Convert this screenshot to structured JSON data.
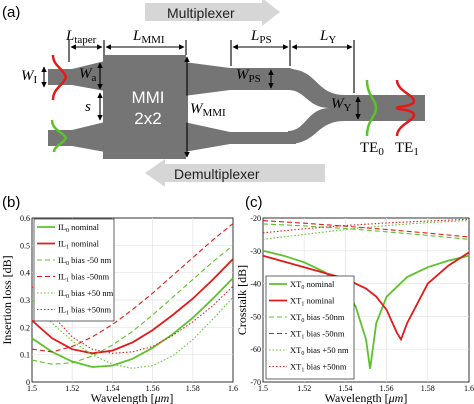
{
  "panel_a": {
    "label": "(a)",
    "multiplexer": "Multiplexer",
    "demultiplexer": "Demultiplexer",
    "mmi_line1": "MMI",
    "mmi_line2": "2x2",
    "L_taper": {
      "main": "L",
      "sub": "taper"
    },
    "L_MMI": {
      "main": "L",
      "sub": "MMI"
    },
    "L_PS": {
      "main": "L",
      "sub": "PS"
    },
    "L_Y": {
      "main": "L",
      "sub": "Y"
    },
    "W_I": {
      "main": "W",
      "sub": "I"
    },
    "W_a": {
      "main": "W",
      "sub": "a"
    },
    "s": "s",
    "W_MMI": {
      "main": "W",
      "sub": "MMI"
    },
    "W_PS": {
      "main": "W",
      "sub": "PS"
    },
    "W_Y": {
      "main": "W",
      "sub": "Y"
    },
    "TE0": {
      "main": "TE",
      "sub": "0"
    },
    "TE1": {
      "main": "TE",
      "sub": "1"
    },
    "colors": {
      "waveguide": "#757575",
      "arrow": "#d6d6d6",
      "green": "#5cc22b",
      "red": "#e11a1a"
    }
  },
  "panel_b": {
    "label": "(b)",
    "xlabel": "Wavelength [",
    "xlabel_unit": "μm",
    "xlabel_end": "]",
    "ylabel": "Insertion loss [dB]",
    "legend": [
      {
        "main": "IL",
        "sub": "0",
        "text": " nominal"
      },
      {
        "main": "IL",
        "sub": "1",
        "text": " nominal"
      },
      {
        "main": "IL",
        "sub": "0",
        "text": " bias -50 nm"
      },
      {
        "main": "IL",
        "sub": "1",
        "text": " bias -50nm"
      },
      {
        "main": "IL",
        "sub": "0",
        "text": " bias +50 nm"
      },
      {
        "main": "IL",
        "sub": "1",
        "text": " bias +50nm"
      }
    ]
  },
  "panel_c": {
    "label": "(c)",
    "xlabel": "Wavelength [",
    "xlabel_unit": "μm",
    "xlabel_end": "]",
    "ylabel": "Crosstalk [dB]",
    "legend": [
      {
        "main": "XT",
        "sub": "0",
        "text": " nominal"
      },
      {
        "main": "XT",
        "sub": "1",
        "text": " nominal"
      },
      {
        "main": "XT",
        "sub": "0",
        "text": " bias -50nm"
      },
      {
        "main": "XT",
        "sub": "1",
        "text": " bias -50nm"
      },
      {
        "main": "XT",
        "sub": "0",
        "text": " bias +50 nm"
      },
      {
        "main": "XT",
        "sub": "1",
        "text": " bias +50nm"
      }
    ]
  },
  "chart_data": [
    {
      "type": "line",
      "panel": "(b)",
      "xlabel": "Wavelength [μm]",
      "ylabel": "Insertion loss [dB]",
      "xlim": [
        1.5,
        1.6
      ],
      "ylim": [
        0,
        0.6
      ],
      "xticks": [
        "1.5",
        "1.52",
        "1.54",
        "1.56",
        "1.58",
        "1.6"
      ],
      "yticks": [
        "0",
        "0.1",
        "0.2",
        "0.3",
        "0.4",
        "0.5",
        "0.6"
      ],
      "grid": true,
      "legend_position": "top-left",
      "series": [
        {
          "name": "IL0 nominal",
          "color": "#5cc22b",
          "style": "solid",
          "x": [
            1.5,
            1.51,
            1.52,
            1.53,
            1.54,
            1.55,
            1.56,
            1.57,
            1.58,
            1.59,
            1.6
          ],
          "y": [
            0.16,
            0.11,
            0.075,
            0.055,
            0.06,
            0.085,
            0.125,
            0.175,
            0.235,
            0.305,
            0.38
          ]
        },
        {
          "name": "IL1 nominal",
          "color": "#e11a1a",
          "style": "solid",
          "x": [
            1.5,
            1.51,
            1.52,
            1.53,
            1.54,
            1.55,
            1.56,
            1.57,
            1.58,
            1.59,
            1.6
          ],
          "y": [
            0.225,
            0.16,
            0.12,
            0.105,
            0.115,
            0.145,
            0.19,
            0.245,
            0.305,
            0.375,
            0.45
          ]
        },
        {
          "name": "IL0 bias -50 nm",
          "color": "#5cc22b",
          "style": "dashed",
          "x": [
            1.5,
            1.51,
            1.52,
            1.53,
            1.54,
            1.55,
            1.56,
            1.57,
            1.58,
            1.59,
            1.6
          ],
          "y": [
            0.08,
            0.065,
            0.07,
            0.095,
            0.135,
            0.185,
            0.245,
            0.31,
            0.375,
            0.44,
            0.5
          ]
        },
        {
          "name": "IL1 bias -50nm",
          "color": "#e11a1a",
          "style": "dashed",
          "x": [
            1.5,
            1.51,
            1.52,
            1.53,
            1.54,
            1.55,
            1.56,
            1.57,
            1.58,
            1.59,
            1.6
          ],
          "y": [
            0.12,
            0.11,
            0.13,
            0.165,
            0.21,
            0.265,
            0.325,
            0.39,
            0.455,
            0.52,
            0.58
          ]
        },
        {
          "name": "IL0 bias +50 nm",
          "color": "#5cc22b",
          "style": "dotted",
          "x": [
            1.5,
            1.51,
            1.52,
            1.53,
            1.54,
            1.55,
            1.56,
            1.57,
            1.58,
            1.59,
            1.6
          ],
          "y": [
            0.3,
            0.215,
            0.15,
            0.1,
            0.065,
            0.05,
            0.06,
            0.095,
            0.155,
            0.23,
            0.31
          ]
        },
        {
          "name": "IL1 bias +50nm",
          "color": "#e11a1a",
          "style": "dotted",
          "x": [
            1.5,
            1.51,
            1.52,
            1.53,
            1.54,
            1.55,
            1.56,
            1.57,
            1.58,
            1.59,
            1.6
          ],
          "y": [
            0.35,
            0.245,
            0.165,
            0.12,
            0.105,
            0.11,
            0.13,
            0.17,
            0.22,
            0.28,
            0.35
          ]
        }
      ]
    },
    {
      "type": "line",
      "panel": "(c)",
      "xlabel": "Wavelength [μm]",
      "ylabel": "Crosstalk [dB]",
      "xlim": [
        1.5,
        1.6
      ],
      "ylim": [
        -70,
        -20
      ],
      "xticks": [
        "1.5",
        "1.52",
        "1.54",
        "1.56",
        "1.58",
        "1.6"
      ],
      "yticks": [
        "-70",
        "-60",
        "-50",
        "-40",
        "-30",
        "-20"
      ],
      "grid": true,
      "legend_position": "bottom-left",
      "series": [
        {
          "name": "XT0 nominal",
          "color": "#5cc22b",
          "style": "solid",
          "x": [
            1.5,
            1.51,
            1.52,
            1.53,
            1.54,
            1.545,
            1.55,
            1.552,
            1.555,
            1.56,
            1.57,
            1.58,
            1.59,
            1.6
          ],
          "y": [
            -30,
            -31.5,
            -33.5,
            -36.5,
            -42,
            -47,
            -57,
            -66,
            -52,
            -44,
            -38,
            -35,
            -33,
            -31.5
          ]
        },
        {
          "name": "XT1 nominal",
          "color": "#e11a1a",
          "style": "solid",
          "x": [
            1.5,
            1.52,
            1.54,
            1.55,
            1.555,
            1.56,
            1.565,
            1.567,
            1.57,
            1.58,
            1.59,
            1.6
          ],
          "y": [
            -31.5,
            -35,
            -38.5,
            -41.5,
            -44,
            -48,
            -55,
            -57,
            -52,
            -40,
            -34.5,
            -30.5
          ]
        },
        {
          "name": "XT0 bias -50nm",
          "color": "#5cc22b",
          "style": "dashed",
          "x": [
            1.5,
            1.52,
            1.54,
            1.56,
            1.58,
            1.6
          ],
          "y": [
            -21.8,
            -22.4,
            -23.2,
            -24.2,
            -25.3,
            -26.5
          ]
        },
        {
          "name": "XT1 bias -50nm",
          "color": "#e11a1a",
          "style": "dashed",
          "x": [
            1.5,
            1.52,
            1.54,
            1.56,
            1.58,
            1.6
          ],
          "y": [
            -20.8,
            -21.6,
            -22.5,
            -23.5,
            -24.6,
            -25.8
          ]
        },
        {
          "name": "XT0 bias +50 nm",
          "color": "#5cc22b",
          "style": "dotted",
          "x": [
            1.5,
            1.52,
            1.54,
            1.56,
            1.58,
            1.6
          ],
          "y": [
            -26.5,
            -25,
            -23.5,
            -22.3,
            -21.4,
            -20.8
          ]
        },
        {
          "name": "XT1 bias +50nm",
          "color": "#e11a1a",
          "style": "dotted",
          "x": [
            1.5,
            1.52,
            1.54,
            1.56,
            1.58,
            1.6
          ],
          "y": [
            -24.5,
            -23.3,
            -22.3,
            -21.5,
            -20.9,
            -20.4
          ]
        }
      ]
    }
  ]
}
